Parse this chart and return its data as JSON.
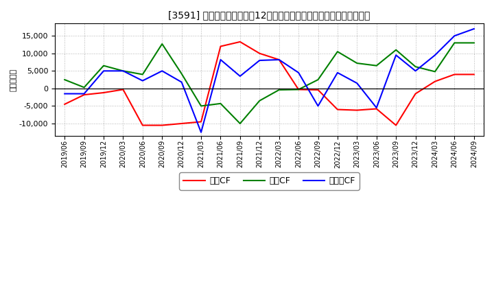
{
  "title": "[3591] キャッシュフローの12か月移動合計の対前年同期増減額の推移",
  "ylabel": "（百万円）",
  "background_color": "#ffffff",
  "plot_bg_color": "#ffffff",
  "dates": [
    "2019/06",
    "2019/09",
    "2019/12",
    "2020/03",
    "2020/06",
    "2020/09",
    "2020/12",
    "2021/03",
    "2021/06",
    "2021/09",
    "2021/12",
    "2022/03",
    "2022/06",
    "2022/09",
    "2022/12",
    "2023/03",
    "2023/06",
    "2023/09",
    "2023/12",
    "2024/03",
    "2024/06",
    "2024/09"
  ],
  "operating_cf": [
    -4500,
    -1800,
    -1200,
    -300,
    -10500,
    -10500,
    -10000,
    -9500,
    12000,
    13300,
    10000,
    8200,
    -300,
    -400,
    -6000,
    -6200,
    -5800,
    -10500,
    -1500,
    2000,
    4000,
    4000
  ],
  "investing_cf": [
    2500,
    300,
    6500,
    5000,
    4000,
    12700,
    4200,
    -5000,
    -4300,
    -10000,
    -3500,
    -400,
    -300,
    2500,
    10500,
    7200,
    6500,
    11000,
    6200,
    4800,
    13000,
    13000
  ],
  "free_cf": [
    -1500,
    -1500,
    5000,
    5000,
    2200,
    5000,
    1800,
    -12500,
    8200,
    3500,
    8000,
    8200,
    4500,
    -5000,
    4500,
    1500,
    -5500,
    9500,
    5000,
    9500,
    15000,
    17000
  ],
  "operating_color": "#ff0000",
  "investing_color": "#008000",
  "free_color": "#0000ff",
  "ylim_min": -13500,
  "ylim_max": 18500,
  "yticks": [
    -10000,
    -5000,
    0,
    5000,
    10000,
    15000
  ],
  "legend_labels": [
    "営業CF",
    "投資CF",
    "フリーCF"
  ]
}
